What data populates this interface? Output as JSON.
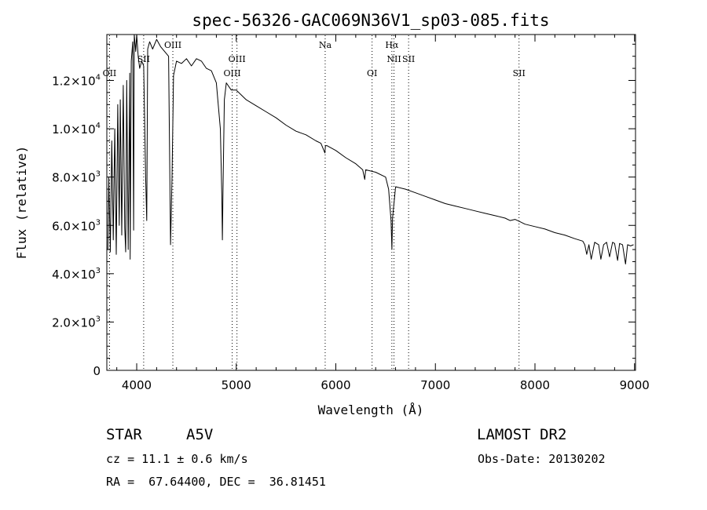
{
  "chart_data": {
    "type": "line",
    "title": "spec-56326-GAC069N36V1_sp03-085.fits",
    "xlabel": "Wavelength (Å)",
    "ylabel": "Flux (relative)",
    "xlim": [
      3700,
      9010
    ],
    "ylim": [
      0,
      13900
    ],
    "x_ticks": [
      {
        "value": 4000,
        "label": "4000"
      },
      {
        "value": 5000,
        "label": "5000"
      },
      {
        "value": 6000,
        "label": "6000"
      },
      {
        "value": 7000,
        "label": "7000"
      },
      {
        "value": 8000,
        "label": "8000"
      },
      {
        "value": 9000,
        "label": "9000"
      }
    ],
    "y_ticks": [
      {
        "value": 0,
        "label": "0",
        "exp": ""
      },
      {
        "value": 2000,
        "label": "2.0×10",
        "exp": "3"
      },
      {
        "value": 4000,
        "label": "4.0×10",
        "exp": "3"
      },
      {
        "value": 6000,
        "label": "6.0×10",
        "exp": "3"
      },
      {
        "value": 8000,
        "label": "8.0×10",
        "exp": "3"
      },
      {
        "value": 10000,
        "label": "1.0×10",
        "exp": "4"
      },
      {
        "value": 12000,
        "label": "1.2×10",
        "exp": "4"
      }
    ],
    "grid": false,
    "series": [
      {
        "x": [
          3710,
          3720,
          3735,
          3750,
          3765,
          3780,
          3795,
          3810,
          3825,
          3835,
          3850,
          3865,
          3880,
          3889,
          3900,
          3915,
          3930,
          3934,
          3945,
          3960,
          3969,
          3975,
          3990,
          4000,
          4015,
          4030,
          4050,
          4070,
          4090,
          4101,
          4110,
          4130,
          4160,
          4200,
          4240,
          4280,
          4320,
          4340,
          4355,
          4370,
          4400,
          4450,
          4500,
          4550,
          4600,
          4650,
          4700,
          4750,
          4800,
          4840,
          4855,
          4861,
          4867,
          4880,
          4900,
          4950,
          5000,
          5050,
          5100,
          5200,
          5300,
          5400,
          5500,
          5600,
          5700,
          5800,
          5850,
          5890,
          5896,
          5910,
          6000,
          6100,
          6200,
          6270,
          6290,
          6300,
          6400,
          6500,
          6530,
          6555,
          6563,
          6570,
          6600,
          6700,
          6800,
          6900,
          7000,
          7100,
          7200,
          7300,
          7400,
          7500,
          7600,
          7700,
          7750,
          7800,
          7850,
          7900,
          8000,
          8100,
          8200,
          8300,
          8400,
          8480,
          8500,
          8520,
          8542,
          8565,
          8600,
          8640,
          8662,
          8690,
          8720,
          8750,
          8780,
          8800,
          8830,
          8850,
          8880,
          8910,
          8930,
          8960,
          8990
        ],
        "y": [
          5000,
          8000,
          4900,
          9500,
          5400,
          10000,
          4800,
          11000,
          6000,
          11200,
          5600,
          11800,
          5900,
          4900,
          12000,
          5000,
          12300,
          4600,
          12800,
          13600,
          5800,
          13900,
          13200,
          13900,
          13000,
          12500,
          12800,
          12600,
          8000,
          6200,
          13300,
          13600,
          13300,
          13700,
          13400,
          13200,
          13000,
          5200,
          8000,
          12200,
          12800,
          12700,
          12900,
          12600,
          12900,
          12800,
          12500,
          12400,
          11900,
          10000,
          7200,
          5400,
          7500,
          11200,
          11900,
          11600,
          11600,
          11400,
          11200,
          10950,
          10700,
          10450,
          10150,
          9900,
          9750,
          9500,
          9400,
          9000,
          9300,
          9300,
          9100,
          8800,
          8550,
          8300,
          7900,
          8300,
          8200,
          8000,
          7500,
          6200,
          5000,
          6300,
          7600,
          7500,
          7350,
          7200,
          7050,
          6900,
          6800,
          6700,
          6600,
          6500,
          6400,
          6300,
          6200,
          6250,
          6150,
          6050,
          5950,
          5850,
          5700,
          5600,
          5450,
          5350,
          5200,
          4800,
          5200,
          4600,
          5300,
          5200,
          4600,
          5200,
          5300,
          4700,
          5300,
          5250,
          4550,
          5250,
          5200,
          4400,
          5200,
          5150,
          5200
        ]
      }
    ],
    "line_marks": [
      {
        "label": "OII",
        "x": 3727,
        "row": 3
      },
      {
        "label": "SII",
        "x": 4070,
        "row": 2
      },
      {
        "label": "OIII",
        "x": 4363,
        "row": 1
      },
      {
        "label": "OIII",
        "x": 4959,
        "row": 3
      },
      {
        "label": "OIII",
        "x": 5007,
        "row": 2
      },
      {
        "label": "Na",
        "x": 5893,
        "row": 1
      },
      {
        "label": "OI",
        "x": 6364,
        "row": 3
      },
      {
        "label": "Hα",
        "x": 6563,
        "row": 1
      },
      {
        "label": "NII",
        "x": 6584,
        "row": 2
      },
      {
        "label": "SII",
        "x": 6731,
        "row": 2
      },
      {
        "label": "SII",
        "x": 7840,
        "row": 3
      }
    ]
  },
  "info": {
    "object_class": "STAR",
    "subclass": "A5V",
    "survey": "LAMOST DR2",
    "cz": "cz = 11.1 ± 0.6 km/s",
    "obs_date": "Obs-Date: 20130202",
    "coords": "RA =  67.64400, DEC =  36.81451"
  }
}
